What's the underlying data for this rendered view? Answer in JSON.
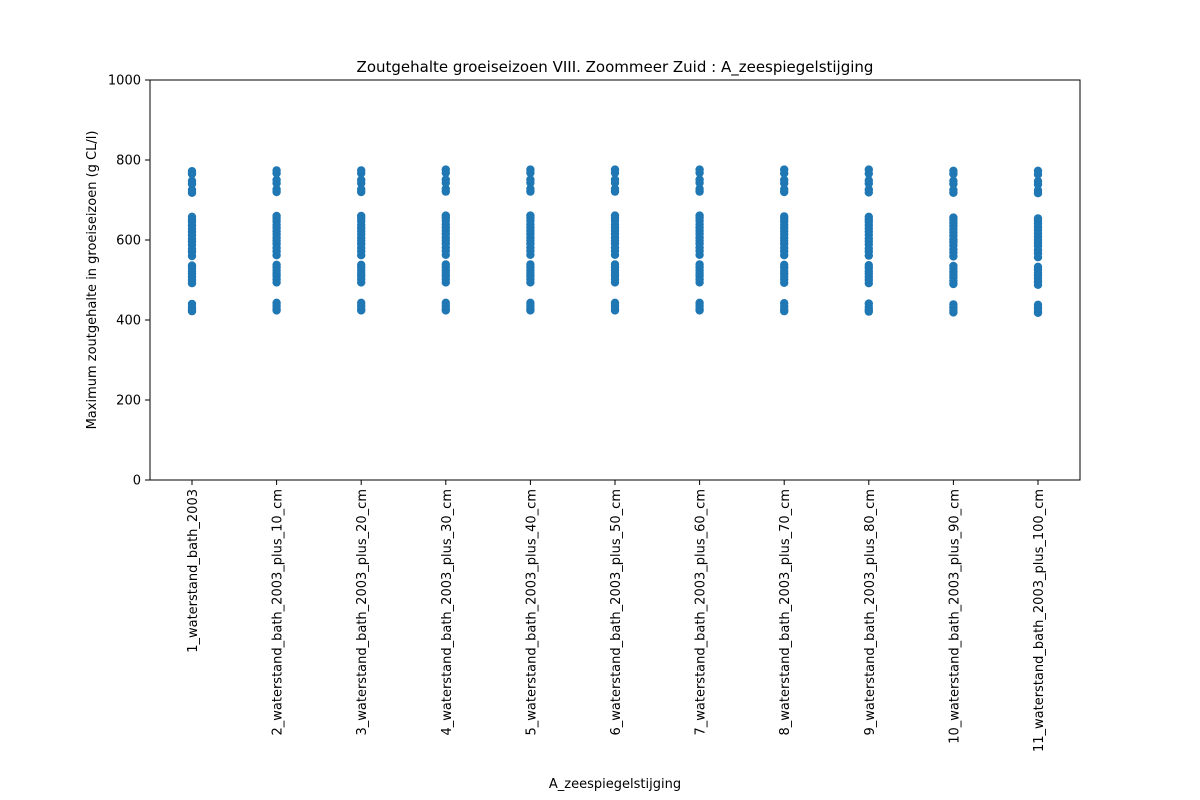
{
  "chart_data": {
    "type": "scatter",
    "title": "Zoutgehalte groeiseizoen VIII. Zoommeer Zuid : A_zeespiegelstijging",
    "xlabel": "A_zeespiegelstijging",
    "ylabel": "Maximum zoutgehalte in groeiseizoen (g CL/l)",
    "ylim": [
      0,
      1000
    ],
    "yticks": [
      0,
      200,
      400,
      600,
      800,
      1000
    ],
    "categories": [
      "1_waterstand_bath_2003",
      "2_waterstand_bath_2003_plus_10_cm",
      "3_waterstand_bath_2003_plus_20_cm",
      "4_waterstand_bath_2003_plus_30_cm",
      "5_waterstand_bath_2003_plus_40_cm",
      "6_waterstand_bath_2003_plus_50_cm",
      "7_waterstand_bath_2003_plus_60_cm",
      "8_waterstand_bath_2003_plus_70_cm",
      "9_waterstand_bath_2003_plus_80_cm",
      "10_waterstand_bath_2003_plus_90_cm",
      "11_waterstand_bath_2003_plus_100_cm"
    ],
    "series": [
      {
        "values": [
          [
            422,
            426,
            432,
            440,
            492,
            500,
            508,
            515,
            522,
            530,
            536,
            560,
            570,
            578,
            588,
            596,
            603,
            612,
            620,
            628,
            636,
            645,
            652,
            658,
            718,
            725,
            740,
            748,
            765,
            772
          ],
          [
            424,
            428,
            435,
            443,
            494,
            502,
            510,
            517,
            524,
            532,
            538,
            562,
            572,
            580,
            590,
            598,
            605,
            614,
            622,
            630,
            638,
            647,
            654,
            660,
            720,
            727,
            742,
            750,
            767,
            774
          ],
          [
            424,
            428,
            435,
            443,
            494,
            502,
            510,
            517,
            524,
            532,
            538,
            562,
            572,
            580,
            590,
            598,
            605,
            614,
            622,
            630,
            638,
            647,
            654,
            660,
            720,
            727,
            742,
            750,
            767,
            774
          ],
          [
            424,
            428,
            435,
            443,
            494,
            502,
            510,
            517,
            524,
            532,
            539,
            563,
            573,
            581,
            591,
            599,
            606,
            615,
            623,
            631,
            639,
            648,
            655,
            661,
            721,
            728,
            743,
            751,
            768,
            776
          ],
          [
            424,
            428,
            435,
            443,
            494,
            502,
            510,
            517,
            524,
            532,
            539,
            563,
            573,
            581,
            591,
            599,
            606,
            615,
            623,
            631,
            639,
            648,
            655,
            661,
            721,
            728,
            743,
            751,
            768,
            776
          ],
          [
            424,
            428,
            435,
            443,
            494,
            502,
            510,
            517,
            524,
            532,
            539,
            563,
            573,
            581,
            591,
            599,
            606,
            615,
            623,
            631,
            639,
            648,
            655,
            661,
            721,
            728,
            743,
            751,
            768,
            776
          ],
          [
            424,
            428,
            435,
            443,
            494,
            502,
            510,
            517,
            524,
            532,
            539,
            563,
            573,
            581,
            591,
            599,
            606,
            615,
            623,
            631,
            639,
            648,
            655,
            661,
            721,
            728,
            743,
            751,
            768,
            776
          ],
          [
            422,
            427,
            434,
            442,
            493,
            501,
            509,
            516,
            523,
            531,
            538,
            562,
            572,
            580,
            590,
            598,
            605,
            614,
            622,
            630,
            638,
            646,
            653,
            659,
            720,
            727,
            742,
            750,
            767,
            776
          ],
          [
            421,
            426,
            433,
            441,
            492,
            500,
            508,
            515,
            522,
            530,
            537,
            561,
            571,
            579,
            589,
            597,
            604,
            613,
            621,
            629,
            637,
            645,
            652,
            658,
            719,
            726,
            741,
            749,
            766,
            776
          ],
          [
            419,
            424,
            431,
            439,
            490,
            498,
            506,
            513,
            520,
            528,
            535,
            559,
            569,
            577,
            587,
            595,
            602,
            611,
            619,
            627,
            635,
            643,
            650,
            656,
            718,
            725,
            740,
            748,
            765,
            773
          ],
          [
            418,
            423,
            430,
            438,
            488,
            496,
            504,
            511,
            518,
            526,
            533,
            557,
            567,
            575,
            585,
            593,
            600,
            609,
            617,
            625,
            633,
            641,
            648,
            654,
            717,
            724,
            739,
            747,
            764,
            773
          ]
        ]
      }
    ],
    "marker_color": "#1f77b4"
  }
}
